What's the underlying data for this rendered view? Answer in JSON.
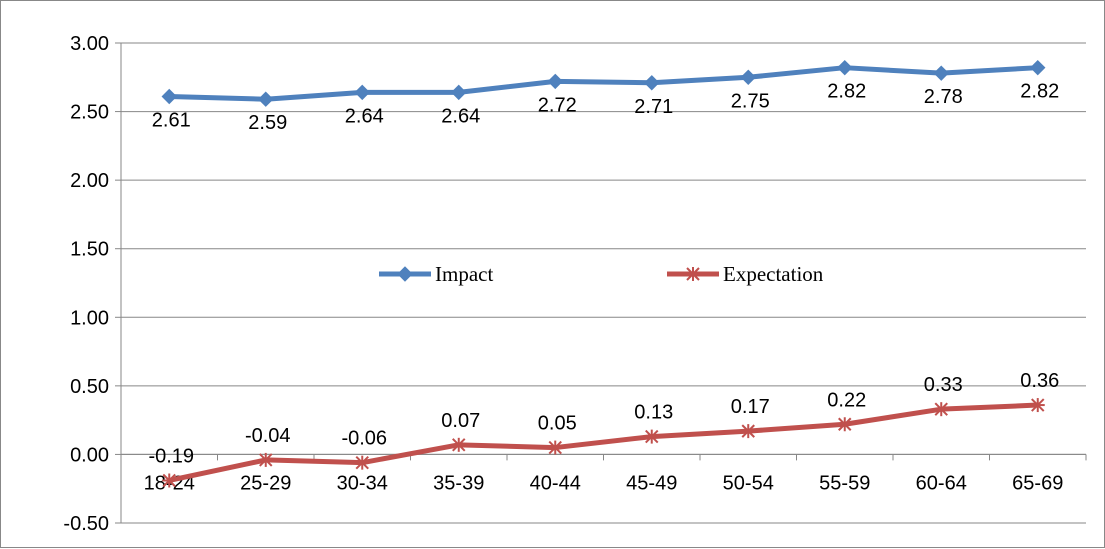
{
  "chart_data": {
    "type": "line",
    "categories": [
      "18-24",
      "25-29",
      "30-34",
      "35-39",
      "40-44",
      "45-49",
      "50-54",
      "55-59",
      "60-64",
      "65-69"
    ],
    "series": [
      {
        "name": "Impact",
        "values": [
          2.61,
          2.59,
          2.64,
          2.64,
          2.72,
          2.71,
          2.75,
          2.82,
          2.78,
          2.82
        ],
        "labels": [
          "2.61",
          "2.59",
          "2.64",
          "2.64",
          "2.72",
          "2.71",
          "2.75",
          "2.82",
          "2.78",
          "2.82"
        ],
        "color": "#4F81BD",
        "marker": "diamond",
        "label_position": "below"
      },
      {
        "name": "Expectation",
        "values": [
          -0.19,
          -0.04,
          -0.06,
          0.07,
          0.05,
          0.13,
          0.17,
          0.22,
          0.33,
          0.36
        ],
        "labels": [
          "-0.19",
          "-0.04",
          "-0.06",
          "0.07",
          "0.05",
          "0.13",
          "0.17",
          "0.22",
          "0.33",
          "0.36"
        ],
        "color": "#C0504D",
        "marker": "star",
        "label_position": "above"
      }
    ],
    "y_ticks": [
      "3.00",
      "2.50",
      "2.00",
      "1.50",
      "1.00",
      "0.50",
      "0.00",
      "-0.50"
    ],
    "ylim": [
      -0.5,
      3.0
    ],
    "y_tick_step": 0.5,
    "grid": true,
    "legend_position": "center",
    "title": "",
    "xlabel": "",
    "ylabel": ""
  }
}
